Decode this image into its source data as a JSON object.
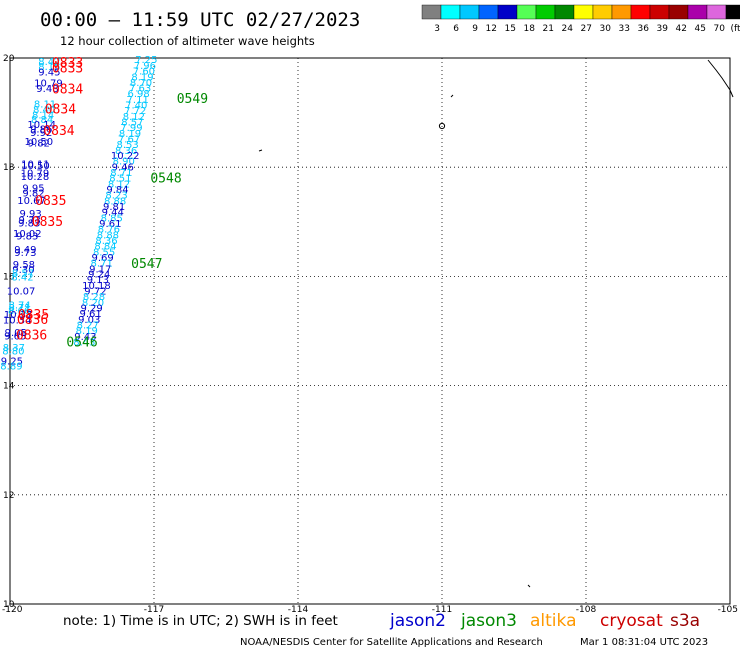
{
  "header": {
    "title": "00:00 – 11:59 UTC 02/27/2023",
    "subtitle": "12 hour collection of altimeter wave heights",
    "scale_labels": [
      "3",
      "6",
      "9",
      "12",
      "15",
      "18",
      "21",
      "24",
      "27",
      "30",
      "33",
      "36",
      "39",
      "42",
      "45",
      "70",
      "(ft)"
    ],
    "scale_colors": [
      "#808080",
      "#00ffff",
      "#00c8ff",
      "#0064ff",
      "#0000c8",
      "#55ff55",
      "#00cc00",
      "#008800",
      "#ffff00",
      "#ffcc00",
      "#ff9900",
      "#ff0000",
      "#cc0000",
      "#990000",
      "#aa00aa",
      "#dd66dd",
      "#000000"
    ]
  },
  "footer": {
    "note": "note:  1) Time is in UTC;  2) SWH is in feet",
    "satellites": [
      {
        "name": "jason2",
        "color": "#0000cc"
      },
      {
        "name": "jason3",
        "color": "#008800"
      },
      {
        "name": "altika",
        "color": "#ff9900"
      },
      {
        "name": "cryosat",
        "color": "#cc0000"
      },
      {
        "name": "s3a",
        "color": "#990000"
      }
    ],
    "credit": "NOAA/NESDIS Center for Satellite Applications and Research",
    "timestamp": "Mar  1 08:31:04 UTC 2023"
  },
  "chart_data": {
    "type": "scatter",
    "xlim": [
      -120,
      -105
    ],
    "ylim": [
      10,
      20
    ],
    "x_ticks": [
      "-120",
      "-117",
      "-114",
      "-111",
      "-108",
      "-105"
    ],
    "y_ticks": [
      "10",
      "12",
      "14",
      "16",
      "18",
      "20"
    ],
    "grid": true,
    "series": [
      {
        "name": "jason3",
        "color": "#008800",
        "points": [
          {
            "lon": -117.16,
            "lat": 19.97,
            "v": "7.25",
            "c": "#00c8ff"
          },
          {
            "lon": -117.19,
            "lat": 19.86,
            "v": "7.96",
            "c": "#00c8ff"
          },
          {
            "lon": -117.21,
            "lat": 19.76,
            "v": "7.60",
            "c": "#00c8ff"
          },
          {
            "lon": -117.24,
            "lat": 19.65,
            "v": "8.19",
            "c": "#00c8ff"
          },
          {
            "lon": -117.27,
            "lat": 19.55,
            "v": "8.70",
            "c": "#00c8ff"
          },
          {
            "lon": -117.29,
            "lat": 19.45,
            "v": "7.63",
            "c": "#00c8ff"
          },
          {
            "lon": -117.32,
            "lat": 19.35,
            "v": "6.98",
            "c": "#00c8ff"
          },
          {
            "lon": -117.34,
            "lat": 19.24,
            "v": "7.11",
            "c": "#00c8ff"
          },
          {
            "lon": -117.37,
            "lat": 19.14,
            "v": "7.40",
            "c": "#00c8ff"
          },
          {
            "lon": -117.39,
            "lat": 19.04,
            "v": "7.72",
            "c": "#00c8ff"
          },
          {
            "lon": -117.42,
            "lat": 18.93,
            "v": "8.12",
            "c": "#00c8ff"
          },
          {
            "lon": -117.45,
            "lat": 18.83,
            "v": "8.57",
            "c": "#00c8ff"
          },
          {
            "lon": -117.47,
            "lat": 18.73,
            "v": "7.99",
            "c": "#00c8ff"
          },
          {
            "lon": -117.5,
            "lat": 18.62,
            "v": "8.19",
            "c": "#00c8ff"
          },
          {
            "lon": -117.52,
            "lat": 18.52,
            "v": "7.67",
            "c": "#00c8ff"
          },
          {
            "lon": -117.55,
            "lat": 18.42,
            "v": "8.53",
            "c": "#00c8ff"
          },
          {
            "lon": -117.58,
            "lat": 18.31,
            "v": "8.36",
            "c": "#00c8ff"
          },
          {
            "lon": -117.6,
            "lat": 18.21,
            "v": "10.22",
            "c": "#0000c8"
          },
          {
            "lon": -117.63,
            "lat": 18.11,
            "v": "8.90",
            "c": "#00c8ff"
          },
          {
            "lon": -117.65,
            "lat": 18.0,
            "v": "9.46",
            "c": "#0000c8"
          },
          {
            "lon": -117.68,
            "lat": 17.9,
            "v": "8.71",
            "c": "#00c8ff"
          },
          {
            "lon": -117.7,
            "lat": 17.8,
            "v": "8.51",
            "c": "#00c8ff"
          },
          {
            "lon": -117.73,
            "lat": 17.69,
            "v": "8.12",
            "c": "#00c8ff"
          },
          {
            "lon": -117.76,
            "lat": 17.59,
            "v": "9.84",
            "c": "#0000c8"
          },
          {
            "lon": -117.78,
            "lat": 17.49,
            "v": "8.23",
            "c": "#00c8ff"
          },
          {
            "lon": -117.81,
            "lat": 17.38,
            "v": "8.88",
            "c": "#00c8ff"
          },
          {
            "lon": -117.83,
            "lat": 17.28,
            "v": "9.81",
            "c": "#0000c8"
          },
          {
            "lon": -117.86,
            "lat": 17.18,
            "v": "9.44",
            "c": "#0000c8"
          },
          {
            "lon": -117.88,
            "lat": 17.07,
            "v": "8.85",
            "c": "#00c8ff"
          },
          {
            "lon": -117.91,
            "lat": 16.97,
            "v": "9.61",
            "c": "#0000c8"
          },
          {
            "lon": -117.94,
            "lat": 16.87,
            "v": "8.76",
            "c": "#00c8ff"
          },
          {
            "lon": -117.96,
            "lat": 16.76,
            "v": "8.88",
            "c": "#00c8ff"
          },
          {
            "lon": -117.99,
            "lat": 16.66,
            "v": "8.36",
            "c": "#00c8ff"
          },
          {
            "lon": -118.01,
            "lat": 16.56,
            "v": "8.84",
            "c": "#00c8ff"
          },
          {
            "lon": -118.04,
            "lat": 16.45,
            "v": "8.55",
            "c": "#00c8ff"
          },
          {
            "lon": -118.07,
            "lat": 16.35,
            "v": "9.69",
            "c": "#0000c8"
          },
          {
            "lon": -118.09,
            "lat": 16.25,
            "v": "8.71",
            "c": "#00c8ff"
          },
          {
            "lon": -118.12,
            "lat": 16.14,
            "v": "9.17",
            "c": "#0000c8"
          },
          {
            "lon": -118.14,
            "lat": 16.04,
            "v": "9.24",
            "c": "#0000c8"
          },
          {
            "lon": -118.17,
            "lat": 15.94,
            "v": "9.13",
            "c": "#0000c8"
          },
          {
            "lon": -118.2,
            "lat": 15.83,
            "v": "10.18",
            "c": "#0000c8"
          },
          {
            "lon": -118.22,
            "lat": 15.73,
            "v": "9.72",
            "c": "#0000c8"
          },
          {
            "lon": -118.25,
            "lat": 15.63,
            "v": "8.28",
            "c": "#00c8ff"
          },
          {
            "lon": -118.27,
            "lat": 15.52,
            "v": "8.20",
            "c": "#00c8ff"
          },
          {
            "lon": -118.3,
            "lat": 15.42,
            "v": "9.29",
            "c": "#0000c8"
          },
          {
            "lon": -118.32,
            "lat": 15.32,
            "v": "9.61",
            "c": "#0000c8"
          },
          {
            "lon": -118.35,
            "lat": 15.21,
            "v": "9.03",
            "c": "#0000c8"
          },
          {
            "lon": -118.38,
            "lat": 15.11,
            "v": "8.27",
            "c": "#00c8ff"
          },
          {
            "lon": -118.4,
            "lat": 15.01,
            "v": "8.19",
            "c": "#00c8ff"
          },
          {
            "lon": -118.43,
            "lat": 14.9,
            "v": "9.43",
            "c": "#0000c8"
          },
          {
            "lon": -118.45,
            "lat": 14.8,
            "v": "8.43",
            "c": "#00c8ff"
          }
        ]
      },
      {
        "name": "jason2",
        "color": "#0000cc",
        "points": [
          {
            "lon": -119.18,
            "lat": 19.94,
            "v": "8.42",
            "c": "#00c8ff"
          },
          {
            "lon": -119.18,
            "lat": 19.84,
            "v": "8.15",
            "c": "#00c8ff"
          },
          {
            "lon": -119.18,
            "lat": 19.74,
            "v": "9.45",
            "c": "#0000c8"
          },
          {
            "lon": -119.2,
            "lat": 19.54,
            "v": "10.79",
            "c": "#0000c8"
          },
          {
            "lon": -119.22,
            "lat": 19.44,
            "v": "9.48",
            "c": "#0000c8"
          },
          {
            "lon": -119.27,
            "lat": 19.16,
            "v": "8.11",
            "c": "#00c8ff"
          },
          {
            "lon": -119.29,
            "lat": 19.06,
            "v": "8.40",
            "c": "#00c8ff"
          },
          {
            "lon": -119.31,
            "lat": 18.96,
            "v": "8.14",
            "c": "#00c8ff"
          },
          {
            "lon": -119.33,
            "lat": 18.87,
            "v": "8.84",
            "c": "#00c8ff"
          },
          {
            "lon": -119.34,
            "lat": 18.78,
            "v": "10.14",
            "c": "#0000c8"
          },
          {
            "lon": -119.35,
            "lat": 18.7,
            "v": "9.86",
            "c": "#0000c8"
          },
          {
            "lon": -119.35,
            "lat": 18.64,
            "v": "9.92",
            "c": "#0000c8"
          },
          {
            "lon": -119.4,
            "lat": 18.47,
            "v": "10.50",
            "c": "#0000c8"
          },
          {
            "lon": -119.4,
            "lat": 18.44,
            "v": "9.82",
            "c": "#0000c8"
          },
          {
            "lon": -119.47,
            "lat": 18.06,
            "v": "10.11",
            "c": "#0000c8"
          },
          {
            "lon": -119.47,
            "lat": 18.03,
            "v": "10.50",
            "c": "#0000c8"
          },
          {
            "lon": -119.48,
            "lat": 17.89,
            "v": "10.79",
            "c": "#0000c8"
          },
          {
            "lon": -119.48,
            "lat": 17.83,
            "v": "10.28",
            "c": "#0000c8"
          },
          {
            "lon": -119.51,
            "lat": 17.62,
            "v": "9.95",
            "c": "#0000c8"
          },
          {
            "lon": -119.51,
            "lat": 17.53,
            "v": "9.82",
            "c": "#0000c8"
          },
          {
            "lon": -119.55,
            "lat": 17.39,
            "v": "10.67",
            "c": "#0000c8"
          },
          {
            "lon": -119.57,
            "lat": 17.15,
            "v": "9.93",
            "c": "#0000c8"
          },
          {
            "lon": -119.59,
            "lat": 17.03,
            "v": "9.73",
            "c": "#0000c8"
          },
          {
            "lon": -119.6,
            "lat": 16.98,
            "v": "9.83",
            "c": "#0000c8"
          },
          {
            "lon": -119.64,
            "lat": 16.79,
            "v": "10.02",
            "c": "#0000c8"
          },
          {
            "lon": -119.64,
            "lat": 16.74,
            "v": "9.83",
            "c": "#0000c8"
          },
          {
            "lon": -119.68,
            "lat": 16.49,
            "v": "9.49",
            "c": "#0000c8"
          },
          {
            "lon": -119.68,
            "lat": 16.44,
            "v": "9.73",
            "c": "#0000c8"
          },
          {
            "lon": -119.71,
            "lat": 16.22,
            "v": "9.58",
            "c": "#0000c8"
          },
          {
            "lon": -119.72,
            "lat": 16.13,
            "v": "9.30",
            "c": "#0000c8"
          },
          {
            "lon": -119.73,
            "lat": 16.06,
            "v": "8.57",
            "c": "#00c8ff"
          },
          {
            "lon": -119.74,
            "lat": 15.99,
            "v": "8.42",
            "c": "#00c8ff"
          },
          {
            "lon": -119.77,
            "lat": 15.73,
            "v": "10.07",
            "c": "#0000c8"
          },
          {
            "lon": -119.8,
            "lat": 15.48,
            "v": "8.74",
            "c": "#00c8ff"
          },
          {
            "lon": -119.8,
            "lat": 15.43,
            "v": "8.71",
            "c": "#00c8ff"
          },
          {
            "lon": -119.81,
            "lat": 15.38,
            "v": "8.66",
            "c": "#00c8ff"
          },
          {
            "lon": -119.83,
            "lat": 15.3,
            "v": "10.37",
            "c": "#0000c8"
          },
          {
            "lon": -119.85,
            "lat": 15.2,
            "v": "10.34",
            "c": "#0000c8"
          },
          {
            "lon": -119.88,
            "lat": 14.97,
            "v": "9.05",
            "c": "#0000c8"
          },
          {
            "lon": -119.89,
            "lat": 14.91,
            "v": "9.65",
            "c": "#0000c8"
          },
          {
            "lon": -119.92,
            "lat": 14.7,
            "v": "8.37",
            "c": "#00c8ff"
          },
          {
            "lon": -119.93,
            "lat": 14.63,
            "v": "8.80",
            "c": "#00c8ff"
          },
          {
            "lon": -119.96,
            "lat": 14.45,
            "v": "9.25",
            "c": "#0000c8"
          },
          {
            "lon": -119.97,
            "lat": 14.36,
            "v": "8.89",
            "c": "#00c8ff"
          }
        ]
      }
    ],
    "time_labels": [
      {
        "lon": -118.8,
        "lat": 19.92,
        "t": "0833",
        "color": "#ff0000"
      },
      {
        "lon": -118.8,
        "lat": 19.82,
        "t": "0833",
        "color": "#ff0000"
      },
      {
        "lon": -118.8,
        "lat": 19.43,
        "t": "0834",
        "color": "#ff0000"
      },
      {
        "lon": -118.95,
        "lat": 19.07,
        "t": "0834",
        "color": "#ff0000"
      },
      {
        "lon": -118.98,
        "lat": 18.67,
        "t": "0834",
        "color": "#ff0000"
      },
      {
        "lon": -116.2,
        "lat": 19.26,
        "t": "0549",
        "color": "#008800"
      },
      {
        "lon": -116.75,
        "lat": 17.8,
        "t": "0548",
        "color": "#008800"
      },
      {
        "lon": -119.15,
        "lat": 17.39,
        "t": "0835",
        "color": "#ff0000"
      },
      {
        "lon": -119.22,
        "lat": 17.01,
        "t": "0835",
        "color": "#ff0000"
      },
      {
        "lon": -117.15,
        "lat": 16.24,
        "t": "0547",
        "color": "#008800"
      },
      {
        "lon": -119.51,
        "lat": 15.3,
        "t": "0835",
        "color": "#ff0000"
      },
      {
        "lon": -119.53,
        "lat": 15.21,
        "t": "0836",
        "color": "#ff0000"
      },
      {
        "lon": -119.55,
        "lat": 14.93,
        "t": "0836",
        "color": "#ff0000"
      },
      {
        "lon": -118.5,
        "lat": 14.8,
        "t": "0546",
        "color": "#008800"
      }
    ]
  }
}
